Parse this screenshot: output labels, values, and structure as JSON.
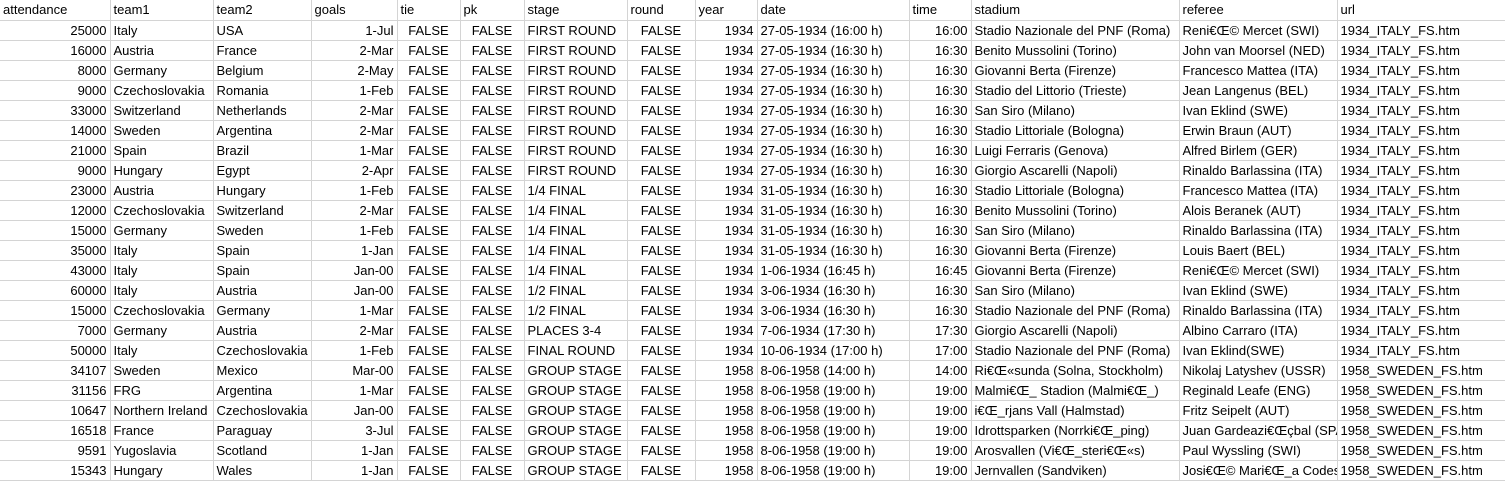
{
  "columns": [
    "attendance",
    "team1",
    "team2",
    "goals",
    "tie",
    "pk",
    "stage",
    "round",
    "year",
    "date",
    "time",
    "stadium",
    "referee",
    "url"
  ],
  "rows": [
    [
      "25000",
      "Italy",
      "USA",
      "1-Jul",
      "FALSE",
      "FALSE",
      "FIRST ROUND",
      "FALSE",
      "1934",
      "27-05-1934 (16:00 h)",
      "16:00",
      "Stadio Nazionale del PNF (Roma)",
      "Reni€Œ© Mercet (SWI)",
      "1934_ITALY_FS.htm"
    ],
    [
      "16000",
      "Austria",
      "France",
      "2-Mar",
      "FALSE",
      "FALSE",
      "FIRST ROUND",
      "FALSE",
      "1934",
      "27-05-1934 (16:30 h)",
      "16:30",
      "Benito Mussolini (Torino)",
      "John van Moorsel (NED)",
      "1934_ITALY_FS.htm"
    ],
    [
      "8000",
      "Germany",
      "Belgium",
      "2-May",
      "FALSE",
      "FALSE",
      "FIRST ROUND",
      "FALSE",
      "1934",
      "27-05-1934 (16:30 h)",
      "16:30",
      "Giovanni Berta (Firenze)",
      "Francesco Mattea (ITA)",
      "1934_ITALY_FS.htm"
    ],
    [
      "9000",
      "Czechoslovakia",
      "Romania",
      "1-Feb",
      "FALSE",
      "FALSE",
      "FIRST ROUND",
      "FALSE",
      "1934",
      "27-05-1934 (16:30 h)",
      "16:30",
      "Stadio del Littorio (Trieste)",
      "Jean Langenus (BEL)",
      "1934_ITALY_FS.htm"
    ],
    [
      "33000",
      "Switzerland",
      "Netherlands",
      "2-Mar",
      "FALSE",
      "FALSE",
      "FIRST ROUND",
      "FALSE",
      "1934",
      "27-05-1934 (16:30 h)",
      "16:30",
      "San Siro (Milano)",
      "Ivan Eklind (SWE)",
      "1934_ITALY_FS.htm"
    ],
    [
      "14000",
      "Sweden",
      "Argentina",
      "2-Mar",
      "FALSE",
      "FALSE",
      "FIRST ROUND",
      "FALSE",
      "1934",
      "27-05-1934 (16:30 h)",
      "16:30",
      "Stadio Littoriale (Bologna)",
      "Erwin Braun (AUT)",
      "1934_ITALY_FS.htm"
    ],
    [
      "21000",
      "Spain",
      "Brazil",
      "1-Mar",
      "FALSE",
      "FALSE",
      "FIRST ROUND",
      "FALSE",
      "1934",
      "27-05-1934 (16:30 h)",
      "16:30",
      "Luigi Ferraris (Genova)",
      "Alfred Birlem (GER)",
      "1934_ITALY_FS.htm"
    ],
    [
      "9000",
      "Hungary",
      "Egypt",
      "2-Apr",
      "FALSE",
      "FALSE",
      "FIRST ROUND",
      "FALSE",
      "1934",
      "27-05-1934 (16:30 h)",
      "16:30",
      "Giorgio Ascarelli (Napoli)",
      "Rinaldo Barlassina (ITA)",
      "1934_ITALY_FS.htm"
    ],
    [
      "23000",
      "Austria",
      "Hungary",
      "1-Feb",
      "FALSE",
      "FALSE",
      "1/4 FINAL",
      "FALSE",
      "1934",
      "31-05-1934 (16:30 h)",
      "16:30",
      "Stadio Littoriale (Bologna)",
      "Francesco Mattea (ITA)",
      "1934_ITALY_FS.htm"
    ],
    [
      "12000",
      "Czechoslovakia",
      "Switzerland",
      "2-Mar",
      "FALSE",
      "FALSE",
      "1/4 FINAL",
      "FALSE",
      "1934",
      "31-05-1934 (16:30 h)",
      "16:30",
      "Benito Mussolini (Torino)",
      "Alois Beranek (AUT)",
      "1934_ITALY_FS.htm"
    ],
    [
      "15000",
      "Germany",
      "Sweden",
      "1-Feb",
      "FALSE",
      "FALSE",
      "1/4 FINAL",
      "FALSE",
      "1934",
      "31-05-1934 (16:30 h)",
      "16:30",
      "San Siro (Milano)",
      "Rinaldo Barlassina (ITA)",
      "1934_ITALY_FS.htm"
    ],
    [
      "35000",
      "Italy",
      "Spain",
      "1-Jan",
      "FALSE",
      "FALSE",
      "1/4 FINAL",
      "FALSE",
      "1934",
      "31-05-1934 (16:30 h)",
      "16:30",
      "Giovanni Berta (Firenze)",
      "Louis Baert (BEL)",
      "1934_ITALY_FS.htm"
    ],
    [
      "43000",
      "Italy",
      "Spain",
      "Jan-00",
      "FALSE",
      "FALSE",
      "1/4 FINAL",
      "FALSE",
      "1934",
      "1-06-1934 (16:45 h)",
      "16:45",
      "Giovanni Berta (Firenze)",
      "Reni€Œ© Mercet (SWI)",
      "1934_ITALY_FS.htm"
    ],
    [
      "60000",
      "Italy",
      "Austria",
      "Jan-00",
      "FALSE",
      "FALSE",
      "1/2 FINAL",
      "FALSE",
      "1934",
      "3-06-1934 (16:30 h)",
      "16:30",
      "San Siro (Milano)",
      "Ivan Eklind (SWE)",
      "1934_ITALY_FS.htm"
    ],
    [
      "15000",
      "Czechoslovakia",
      "Germany",
      "1-Mar",
      "FALSE",
      "FALSE",
      "1/2 FINAL",
      "FALSE",
      "1934",
      "3-06-1934 (16:30 h)",
      "16:30",
      "Stadio Nazionale del PNF (Roma)",
      "Rinaldo Barlassina (ITA)",
      "1934_ITALY_FS.htm"
    ],
    [
      "7000",
      "Germany",
      "Austria",
      "2-Mar",
      "FALSE",
      "FALSE",
      "PLACES 3-4",
      "FALSE",
      "1934",
      "7-06-1934 (17:30 h)",
      "17:30",
      "Giorgio Ascarelli (Napoli)",
      "Albino Carraro (ITA)",
      "1934_ITALY_FS.htm"
    ],
    [
      "50000",
      "Italy",
      "Czechoslovakia",
      "1-Feb",
      "FALSE",
      "FALSE",
      "FINAL ROUND",
      "FALSE",
      "1934",
      "10-06-1934 (17:00 h)",
      "17:00",
      "Stadio Nazionale del PNF (Roma)",
      "Ivan Eklind(SWE)",
      "1934_ITALY_FS.htm"
    ],
    [
      "34107",
      "Sweden",
      "Mexico",
      "Mar-00",
      "FALSE",
      "FALSE",
      "GROUP STAGE",
      "FALSE",
      "1958",
      "8-06-1958 (14:00 h)",
      "14:00",
      "Ri€Œ«sunda (Solna, Stockholm)",
      "Nikolaj Latyshev (USSR)",
      "1958_SWEDEN_FS.htm"
    ],
    [
      "31156",
      "FRG",
      "Argentina",
      "1-Mar",
      "FALSE",
      "FALSE",
      "GROUP STAGE",
      "FALSE",
      "1958",
      "8-06-1958 (19:00 h)",
      "19:00",
      "Malmi€Œ_ Stadion (Malmi€Œ_)",
      "Reginald Leafe (ENG)",
      "1958_SWEDEN_FS.htm"
    ],
    [
      "10647",
      "Northern Ireland",
      "Czechoslovakia",
      "Jan-00",
      "FALSE",
      "FALSE",
      "GROUP STAGE",
      "FALSE",
      "1958",
      "8-06-1958 (19:00 h)",
      "19:00",
      "i€Œ_rjans Vall (Halmstad)",
      "Fritz Seipelt (AUT)",
      "1958_SWEDEN_FS.htm"
    ],
    [
      "16518",
      "France",
      "Paraguay",
      "3-Jul",
      "FALSE",
      "FALSE",
      "GROUP STAGE",
      "FALSE",
      "1958",
      "8-06-1958 (19:00 h)",
      "19:00",
      "Idrottsparken (Norrki€Œ_ping)",
      "Juan Gardeazi€Œçbal (SPA)",
      "1958_SWEDEN_FS.htm"
    ],
    [
      "9591",
      "Yugoslavia",
      "Scotland",
      "1-Jan",
      "FALSE",
      "FALSE",
      "GROUP STAGE",
      "FALSE",
      "1958",
      "8-06-1958 (19:00 h)",
      "19:00",
      "Arosvallen (Vi€Œ_steri€Œ«s)",
      "Paul Wyssling (SWI)",
      "1958_SWEDEN_FS.htm"
    ],
    [
      "15343",
      "Hungary",
      "Wales",
      "1-Jan",
      "FALSE",
      "FALSE",
      "GROUP STAGE",
      "FALSE",
      "1958",
      "8-06-1958 (19:00 h)",
      "19:00",
      "Jernvallen (Sandviken)",
      "Josi€Œ© Mari€Œ_a Codesal",
      "1958_SWEDEN_FS.htm"
    ]
  ]
}
